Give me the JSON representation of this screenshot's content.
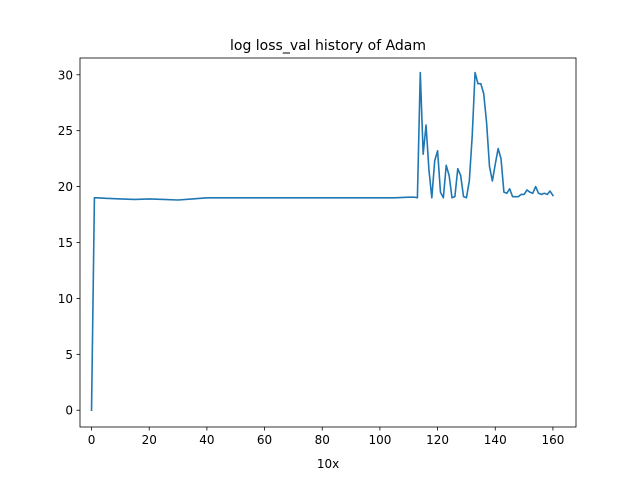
{
  "chart_data": {
    "type": "line",
    "title": "log loss_val history of Adam",
    "xlabel": "10x",
    "ylabel": "",
    "xlim": [
      -4,
      168
    ],
    "ylim": [
      -1.5,
      31.5
    ],
    "xticks": [
      0,
      20,
      40,
      60,
      80,
      100,
      120,
      140,
      160
    ],
    "yticks": [
      0,
      5,
      10,
      15,
      20,
      25,
      30
    ],
    "grid": false,
    "color": "#1f77b4",
    "series": [
      {
        "x": [
          0,
          1,
          2,
          5,
          10,
          15,
          20,
          25,
          30,
          35,
          40,
          45,
          50,
          55,
          60,
          65,
          70,
          75,
          80,
          85,
          90,
          95,
          100,
          105,
          110,
          112,
          113,
          114,
          115,
          116,
          117,
          118,
          119,
          120,
          121,
          122,
          123,
          124,
          125,
          126,
          127,
          128,
          129,
          130,
          131,
          132,
          133,
          134,
          135,
          136,
          137,
          138,
          139,
          140,
          141,
          142,
          143,
          144,
          145,
          146,
          147,
          148,
          149,
          150,
          151,
          152,
          153,
          154,
          155,
          156,
          157,
          158,
          159,
          160
        ],
        "y": [
          0,
          19.0,
          19.0,
          18.95,
          18.9,
          18.85,
          18.9,
          18.85,
          18.8,
          18.9,
          19.0,
          19.0,
          19.0,
          19.0,
          19.0,
          19.0,
          19.0,
          19.0,
          19.0,
          19.0,
          19.0,
          19.0,
          19.0,
          19.0,
          19.05,
          19.05,
          19.0,
          30.2,
          22.9,
          25.5,
          21.5,
          19.0,
          22.3,
          23.2,
          19.5,
          19.0,
          21.9,
          21.0,
          19.0,
          19.1,
          21.6,
          21.0,
          19.1,
          19.0,
          20.5,
          24.5,
          30.2,
          29.2,
          29.2,
          28.3,
          25.7,
          21.8,
          20.5,
          22.0,
          23.4,
          22.5,
          19.5,
          19.4,
          19.8,
          19.1,
          19.1,
          19.1,
          19.3,
          19.3,
          19.7,
          19.5,
          19.4,
          20.0,
          19.4,
          19.3,
          19.4,
          19.3,
          19.6,
          19.2
        ]
      }
    ]
  }
}
